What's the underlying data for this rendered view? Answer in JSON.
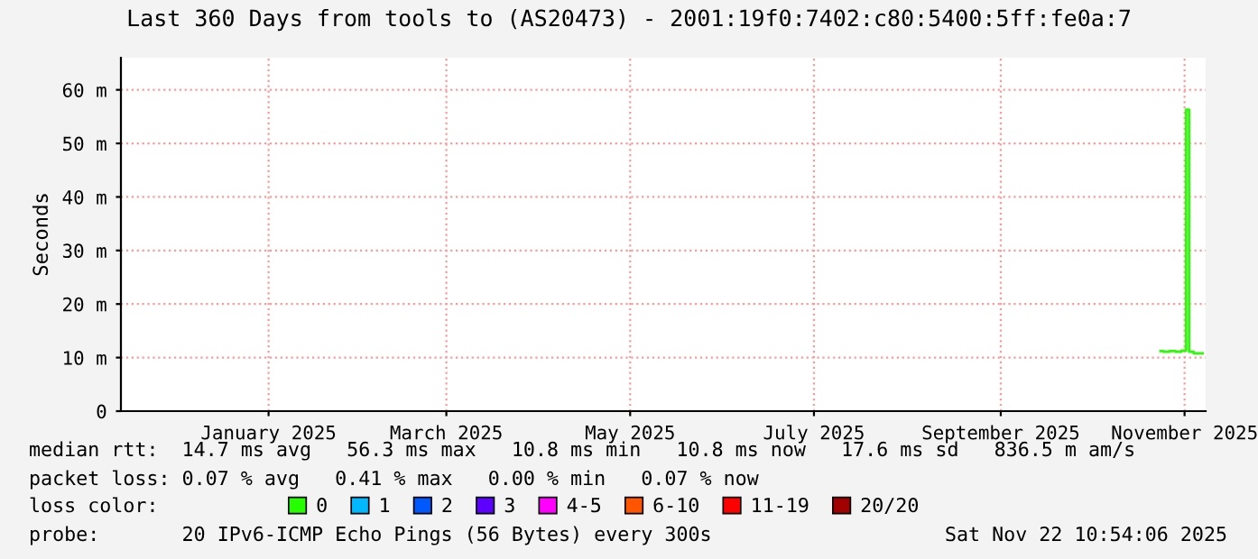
{
  "chart_data": {
    "type": "line",
    "title": "Last 360 Days from tools to (AS20473) - 2001:19f0:7402:c80:5400:5ff:fe0a:7",
    "ylabel": "Seconds",
    "xlim": [
      "2024-11-27",
      "2025-11-22"
    ],
    "xticks": [
      {
        "value": "2025-01-15",
        "label": "January 2025"
      },
      {
        "value": "2025-03-15",
        "label": "March 2025"
      },
      {
        "value": "2025-05-15",
        "label": "May 2025"
      },
      {
        "value": "2025-07-15",
        "label": "July 2025"
      },
      {
        "value": "2025-09-15",
        "label": "September 2025"
      },
      {
        "value": "2025-11-15",
        "label": "November 2025"
      }
    ],
    "ylim": [
      0,
      66
    ],
    "yticks": [
      0,
      {
        "value": 10,
        "label": "10 m"
      },
      {
        "value": 20,
        "label": "20 m"
      },
      {
        "value": 30,
        "label": "30 m"
      },
      {
        "value": 40,
        "label": "40 m"
      },
      {
        "value": 50,
        "label": "50 m"
      },
      {
        "value": 60,
        "label": "60 m"
      }
    ],
    "grid": true,
    "legend": "bottom",
    "legend_title": "loss color:",
    "series": [
      {
        "name": "0",
        "color": "#26ff00",
        "x": [
          "2025-11-07",
          "2025-11-09",
          "2025-11-11",
          "2025-11-13",
          "2025-11-15",
          "2025-11-16",
          "2025-11-17",
          "2025-11-19",
          "2025-11-21"
        ],
        "values": [
          11.2,
          11.1,
          11.2,
          11.1,
          11.3,
          56.3,
          11.1,
          10.8,
          10.8
        ]
      },
      {
        "name": "1",
        "color": "#00b8ff"
      },
      {
        "name": "2",
        "color": "#0059ff"
      },
      {
        "name": "3",
        "color": "#5e00ff"
      },
      {
        "name": "4-5",
        "color": "#ff00ff"
      },
      {
        "name": "6-10",
        "color": "#ff5500"
      },
      {
        "name": "11-19",
        "color": "#ff0000"
      },
      {
        "name": "20/20",
        "color": "#a10000"
      }
    ],
    "annotations": [
      "median rtt:  14.7 ms avg   56.3 ms max   10.8 ms min   10.8 ms now   17.6 ms sd   836.5 m am/s",
      "packet loss: 0.07 % avg   0.41 % max   0.00 % min   0.07 % now",
      "probe:       20 IPv6-ICMP Echo Pings (56 Bytes) every 300s",
      "Sat Nov 22 10:54:06 2025"
    ]
  }
}
